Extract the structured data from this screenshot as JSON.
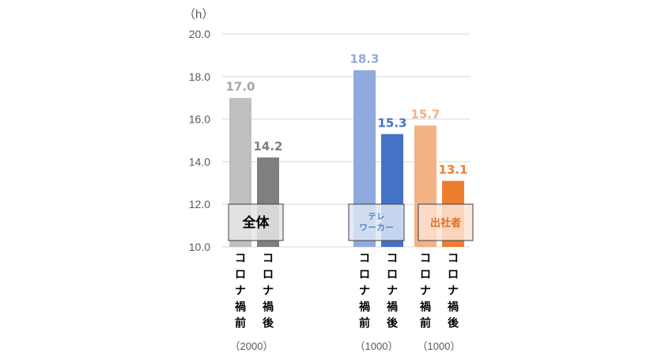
{
  "chart_data": {
    "type": "bar",
    "ylabel": "（h）",
    "ylim": [
      10.0,
      20.0
    ],
    "yticks": [
      "10.0",
      "12.0",
      "14.0",
      "16.0",
      "18.0",
      "20.0"
    ],
    "grid": true,
    "categories": [
      "コロナ禍前",
      "コロナ禍後",
      "コロナ禍前",
      "コロナ禍後",
      "コロナ禍前",
      "コロナ禍後"
    ],
    "groups": [
      {
        "label": "全体",
        "n": "（2000）",
        "values": [
          17.0,
          14.2
        ],
        "value_labels": [
          "17.0",
          "14.2"
        ],
        "colors": [
          "#bfbfbf",
          "#7f7f7f"
        ],
        "label_color": "#000000",
        "box_fill": "#e6e6e6"
      },
      {
        "label": "テレ\nワーカー",
        "n": "（1000）",
        "values": [
          18.3,
          15.3
        ],
        "value_labels": [
          "18.3",
          "15.3"
        ],
        "colors": [
          "#8faadc",
          "#4472c4"
        ],
        "label_color": "#2e5fb7",
        "box_fill": "#dce6f5"
      },
      {
        "label": "出社者",
        "n": "（1000）",
        "values": [
          15.7,
          13.1
        ],
        "value_labels": [
          "15.7",
          "13.1"
        ],
        "colors": [
          "#f4b183",
          "#ed7d31"
        ],
        "label_color": "#e07020",
        "box_fill": "#fbe3d3"
      }
    ],
    "label_colors": [
      "#a6a6a6",
      "#7f7f7f",
      "#8faadc",
      "#4472c4",
      "#f4b183",
      "#ed7d31"
    ]
  }
}
